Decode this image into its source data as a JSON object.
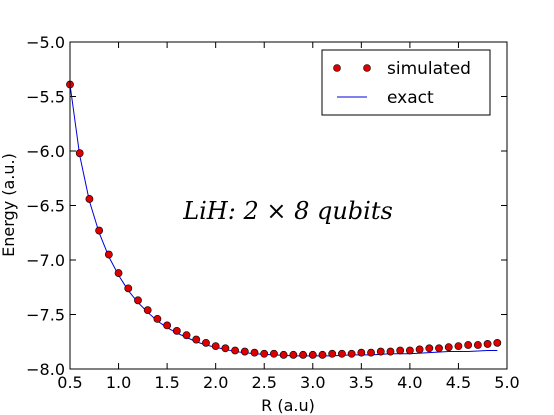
{
  "chart_data": {
    "type": "line",
    "title": "",
    "xlabel": "R (a.u)",
    "ylabel": "Energy (a.u.)",
    "xlim": [
      0.5,
      5.0
    ],
    "ylim": [
      -8.0,
      -5.0
    ],
    "xticks": [
      "0.5",
      "1.0",
      "1.5",
      "2.0",
      "2.5",
      "3.0",
      "3.5",
      "4.0",
      "4.5",
      "5.0"
    ],
    "yticks": [
      "−5.0",
      "−5.5",
      "−6.0",
      "−6.5",
      "−7.0",
      "−7.5",
      "−8.0"
    ],
    "grid": false,
    "legend_position": "top-right",
    "annotation": "LiH: 2 × 8 qubits",
    "series": [
      {
        "name": "simulated",
        "style": "markers",
        "color": "#dd0000",
        "x": [
          0.5,
          0.6,
          0.7,
          0.8,
          0.9,
          1.0,
          1.1,
          1.2,
          1.3,
          1.4,
          1.5,
          1.6,
          1.7,
          1.8,
          1.9,
          2.0,
          2.1,
          2.2,
          2.3,
          2.4,
          2.5,
          2.6,
          2.7,
          2.8,
          2.9,
          3.0,
          3.1,
          3.2,
          3.3,
          3.4,
          3.5,
          3.6,
          3.7,
          3.8,
          3.9,
          4.0,
          4.1,
          4.2,
          4.3,
          4.4,
          4.5,
          4.6,
          4.7,
          4.8,
          4.9
        ],
        "y": [
          -5.39,
          -6.02,
          -6.44,
          -6.73,
          -6.95,
          -7.12,
          -7.26,
          -7.37,
          -7.46,
          -7.54,
          -7.6,
          -7.65,
          -7.69,
          -7.73,
          -7.76,
          -7.79,
          -7.81,
          -7.83,
          -7.84,
          -7.85,
          -7.86,
          -7.86,
          -7.87,
          -7.87,
          -7.87,
          -7.87,
          -7.87,
          -7.86,
          -7.86,
          -7.86,
          -7.85,
          -7.85,
          -7.84,
          -7.84,
          -7.83,
          -7.83,
          -7.82,
          -7.81,
          -7.81,
          -7.8,
          -7.79,
          -7.78,
          -7.78,
          -7.77,
          -7.76
        ]
      },
      {
        "name": "exact",
        "style": "line",
        "color": "#0000dd",
        "x": [
          0.5,
          0.6,
          0.7,
          0.8,
          0.9,
          1.0,
          1.1,
          1.2,
          1.3,
          1.4,
          1.5,
          1.6,
          1.7,
          1.8,
          1.9,
          2.0,
          2.2,
          2.4,
          2.6,
          2.8,
          3.0,
          3.2,
          3.4,
          3.6,
          3.8,
          4.0,
          4.2,
          4.4,
          4.6,
          4.8,
          4.9
        ],
        "y": [
          -5.39,
          -6.04,
          -6.46,
          -6.75,
          -6.97,
          -7.14,
          -7.28,
          -7.39,
          -7.48,
          -7.56,
          -7.62,
          -7.67,
          -7.71,
          -7.75,
          -7.78,
          -7.8,
          -7.84,
          -7.86,
          -7.87,
          -7.88,
          -7.88,
          -7.88,
          -7.87,
          -7.87,
          -7.86,
          -7.86,
          -7.85,
          -7.84,
          -7.84,
          -7.83,
          -7.83
        ]
      }
    ]
  }
}
